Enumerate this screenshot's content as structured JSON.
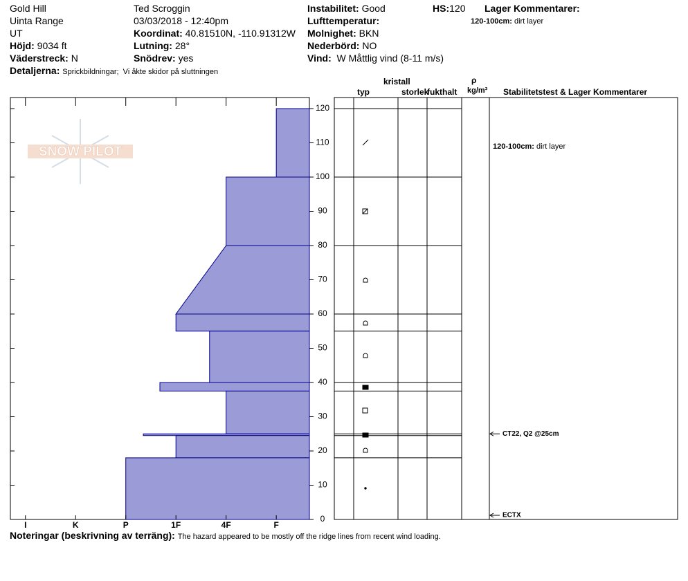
{
  "header": {
    "location": "Gold Hill",
    "range": "Uinta Range",
    "state": "UT",
    "elevation": {
      "label": "Höjd:",
      "value": "9034 ft"
    },
    "aspect": {
      "label": "Väderstreck:",
      "value": "N"
    },
    "details": {
      "label": "Detaljerna:",
      "value": "Sprickbildningar;  Vi åkte skidor på sluttningen"
    },
    "observer": "Ted Scroggin",
    "datetime": "03/03/2018 - 12:40pm",
    "coordinates": {
      "label": "Koordinat:",
      "value": "40.81510N, -110.91312W"
    },
    "slope": {
      "label": "Lutning:",
      "value": "28°"
    },
    "wind_loading": {
      "label": "Snödrev:",
      "value": "yes"
    },
    "instability": {
      "label": "Instabilitet:",
      "value": "Good"
    },
    "air_temp": {
      "label": "Lufttemperatur:"
    },
    "sky": {
      "label": "Molnighet:",
      "value": "BKN"
    },
    "precipitation": {
      "label": "Nederbörd:",
      "value": "NO"
    },
    "wind": {
      "label": "Vind:",
      "value": "W Måttlig vind (8-11 m/s)"
    },
    "hs": {
      "label": "HS:",
      "value": 120
    },
    "layer_comments": {
      "label": "Lager Kommentarer:",
      "items": [
        {
          "range": "120-100cm:",
          "text": "dirt layer"
        }
      ]
    }
  },
  "logo": "SNOW PILOT",
  "columns": {
    "type": "typ",
    "crystal": "kristall",
    "size": "storlek",
    "moisture": "fukthalt",
    "density_symbol": "ρ",
    "density_unit": "kg/m³",
    "comments": "Stabilitetstest & Lager Kommentarer"
  },
  "chart_data": {
    "type": "snow-profile",
    "ylim": [
      0,
      120
    ],
    "yticks": [
      0,
      10,
      20,
      30,
      40,
      50,
      60,
      70,
      80,
      90,
      100,
      110,
      120
    ],
    "xlim": [
      -0.3,
      5.66
    ],
    "xticks": [
      {
        "value": 0,
        "label": "I"
      },
      {
        "value": 1,
        "label": "K"
      },
      {
        "value": 2,
        "label": "P"
      },
      {
        "value": 3,
        "label": "1F"
      },
      {
        "value": 4,
        "label": "4F"
      },
      {
        "value": 5,
        "label": "F"
      }
    ],
    "color": "#9b9bd7",
    "edge_color": "#00008b",
    "layers": [
      {
        "top": 120,
        "bottom": 100,
        "hardness": 5
      },
      {
        "top": 100,
        "bottom": 80,
        "hardness": 4
      },
      {
        "top": 80,
        "bottom": 60,
        "hardness_top": 4,
        "hardness_bottom": 3
      },
      {
        "top": 60,
        "bottom": 55,
        "hardness": 3
      },
      {
        "top": 55,
        "bottom": 40,
        "hardness": 3.67
      },
      {
        "top": 40,
        "bottom": 37.5,
        "hardness": 2.68
      },
      {
        "top": 37.5,
        "bottom": 25,
        "hardness": 4
      },
      {
        "top": 25,
        "bottom": 24.5,
        "hardness": 2.35
      },
      {
        "top": 24.5,
        "bottom": 18,
        "hardness": 3
      },
      {
        "top": 18,
        "bottom": 0,
        "hardness": 2
      }
    ],
    "stability_tests": [
      {
        "label": "CT22, Q2 @25cm",
        "depth": 25
      },
      {
        "label": "ECTX",
        "depth": 0
      }
    ]
  },
  "notes": {
    "label": "Noteringar (beskrivning av terräng):",
    "text": "The hazard appeared to be mostly off the ridge lines from recent wind loading."
  }
}
